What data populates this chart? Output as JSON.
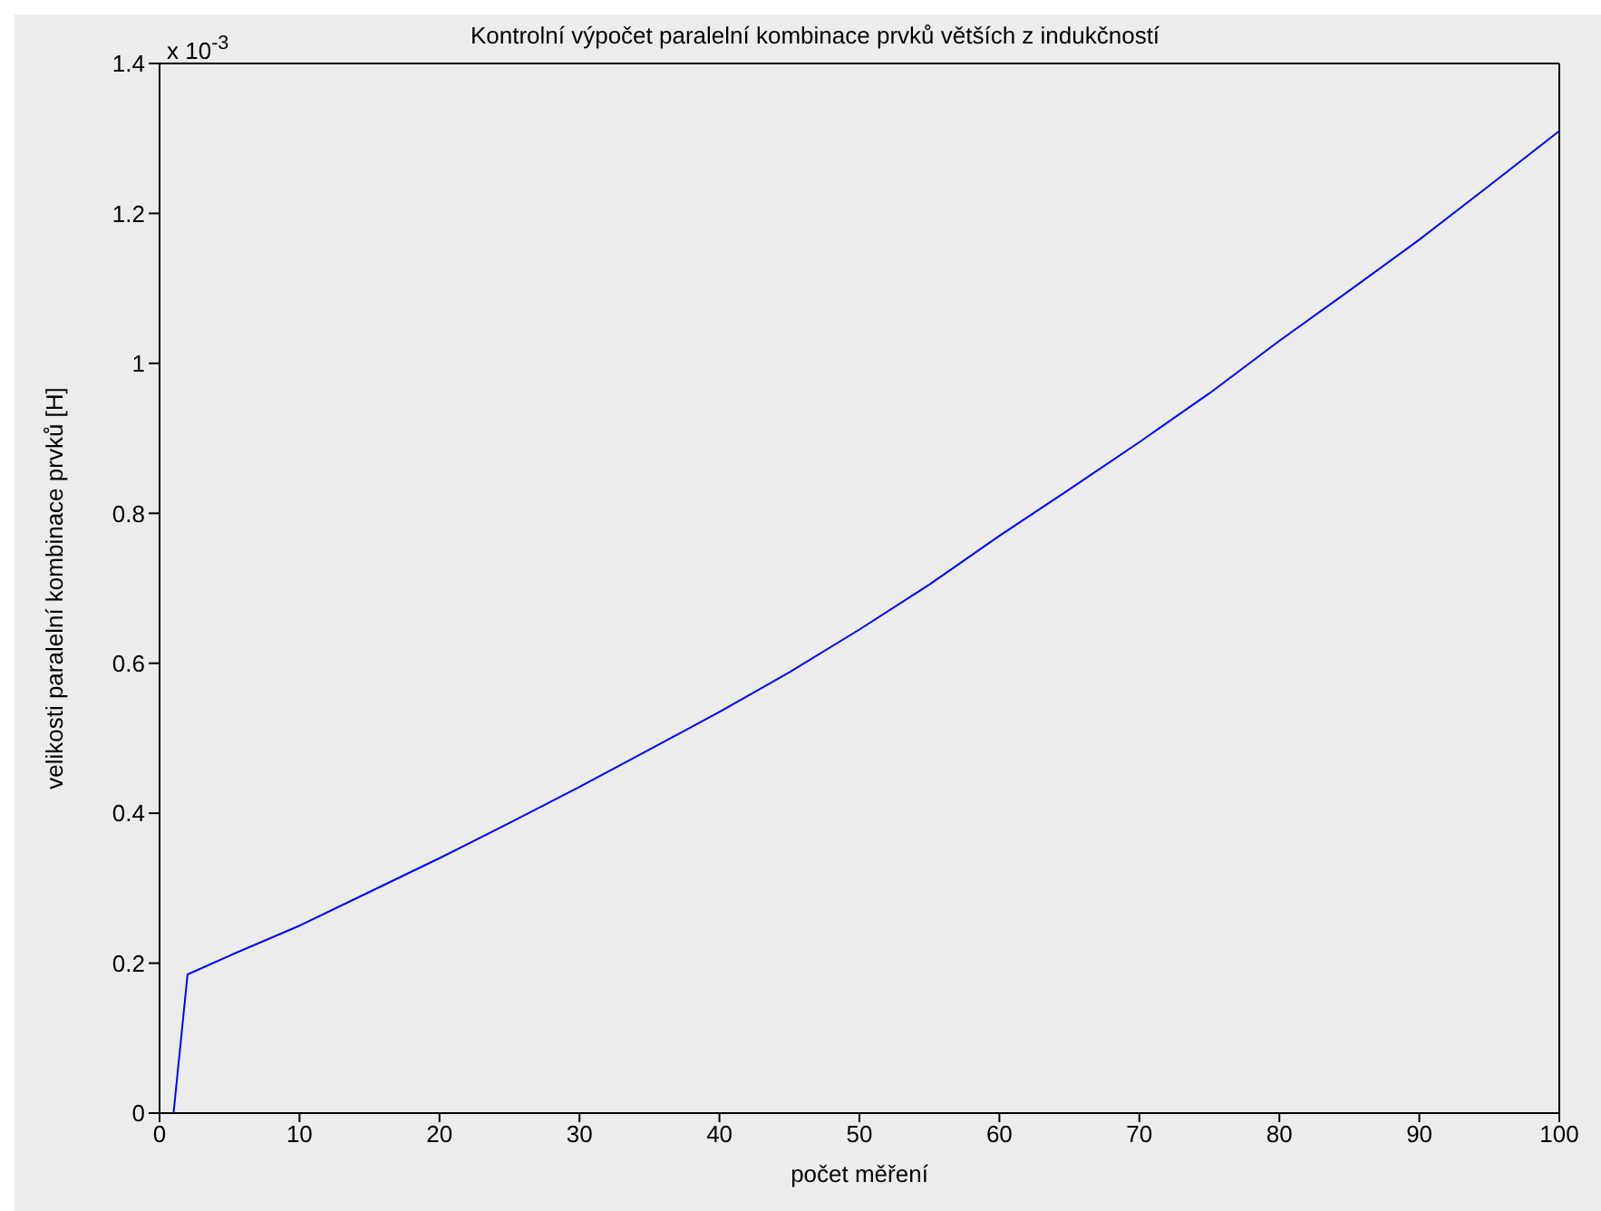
{
  "chart_data": {
    "type": "line",
    "title": "Kontrolní výpočet paralelní kombinace prvků větších z indukčností",
    "xlabel": "počet měření",
    "ylabel": "velikosti paralelní kombinace  prvků [H]",
    "annotations": [
      "x 10$^{-3}$"
    ],
    "x": [
      1,
      2,
      5,
      10,
      15,
      20,
      25,
      30,
      35,
      40,
      45,
      50,
      55,
      60,
      65,
      70,
      75,
      80,
      85,
      90,
      95,
      100
    ],
    "series": [
      {
        "color": "#0000ff",
        "values": [
          0,
          0.185,
          0.21,
          0.25,
          0.295,
          0.34,
          0.387,
          0.435,
          0.485,
          0.535,
          0.588,
          0.645,
          0.705,
          0.77,
          0.832,
          0.895,
          0.96,
          1.03,
          1.097,
          1.165,
          1.237,
          1.31
        ]
      }
    ],
    "xlim": [
      0,
      100
    ],
    "xticks": [
      0,
      10,
      20,
      30,
      40,
      50,
      60,
      70,
      80,
      90,
      100
    ],
    "ylim": [
      0,
      1.4
    ],
    "yticks": [
      0,
      0.2,
      0.4,
      0.6,
      0.8,
      1,
      1.2,
      1.4
    ],
    "grid": false,
    "legend": false,
    "marker": "none",
    "line_style": "solid"
  }
}
